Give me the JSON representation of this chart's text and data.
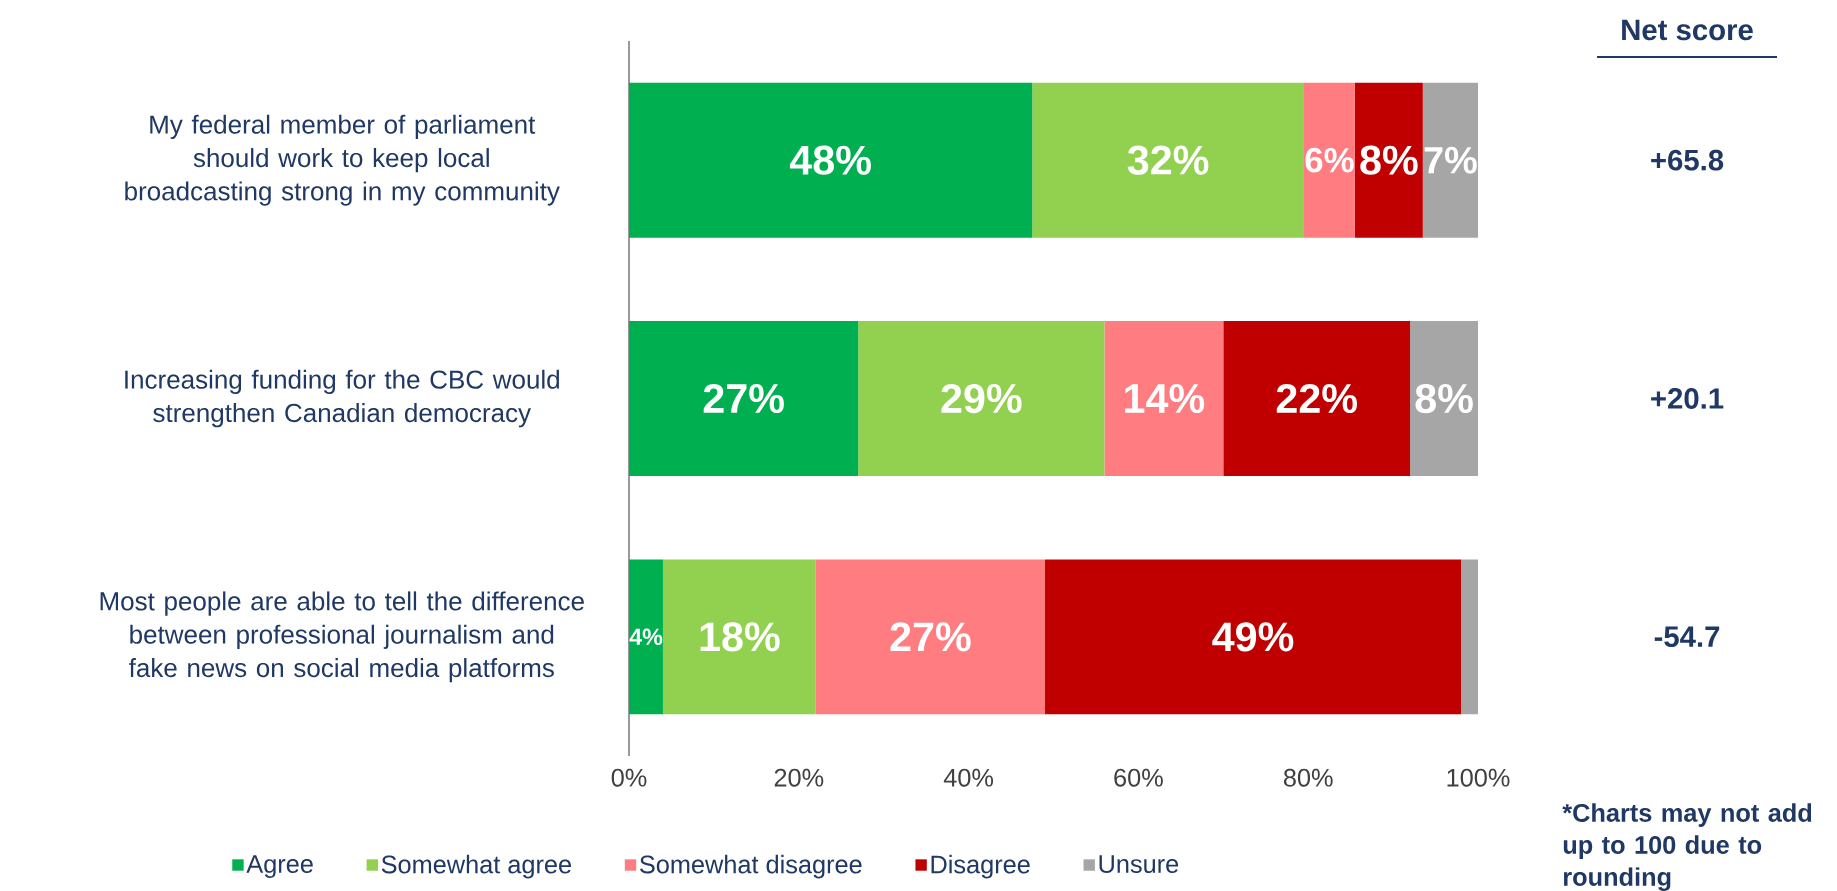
{
  "chart_data": {
    "type": "bar",
    "orientation": "horizontal",
    "stacked": true,
    "categories": [
      "My federal member of parliament should work to keep local broadcasting strong in my community",
      "Increasing funding for the CBC would strengthen Canadian democracy",
      "Most people are able to tell the difference between professional journalism and fake news on social media platforms"
    ],
    "series": [
      {
        "name": "Agree",
        "color": "#00b050",
        "values": [
          47.5,
          27,
          4
        ],
        "value_labels": [
          "48%",
          "27%",
          "4%"
        ]
      },
      {
        "name": "Somewhat agree",
        "color": "#92d050",
        "values": [
          32,
          29,
          18
        ],
        "value_labels": [
          "32%",
          "29%",
          "18%"
        ]
      },
      {
        "name": "Somewhat disagree",
        "color": "#ff7c80",
        "values": [
          6,
          14,
          27
        ],
        "value_labels": [
          "6%",
          "14%",
          "27%"
        ]
      },
      {
        "name": "Disagree",
        "color": "#c00000",
        "values": [
          8,
          22,
          49
        ],
        "value_labels": [
          "8%",
          "22%",
          "49%"
        ]
      },
      {
        "name": "Unsure",
        "color": "#a6a6a6",
        "values": [
          6.5,
          8,
          2
        ],
        "value_labels": [
          "7%",
          "8%",
          null
        ]
      }
    ],
    "xlim": [
      0,
      100
    ],
    "xticks": [
      {
        "value": 0,
        "label": "0%"
      },
      {
        "value": 20,
        "label": "20%"
      },
      {
        "value": 40,
        "label": "40%"
      },
      {
        "value": 60,
        "label": "60%"
      },
      {
        "value": 80,
        "label": "80%"
      },
      {
        "value": 100,
        "label": "100%"
      }
    ],
    "legend": "bottom",
    "annotations": [
      "Net score",
      "+65.8",
      "+20.1",
      "-54.7",
      "*Charts may not add up to 100 due to rounding"
    ]
  }
}
